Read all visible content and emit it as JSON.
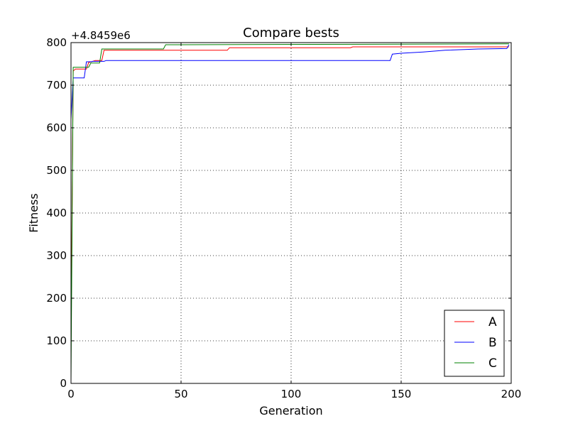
{
  "chart_data": {
    "type": "line",
    "title": "Compare bests",
    "xlabel": "Generation",
    "ylabel": "Fitness",
    "offset_label": "+4.8459e6",
    "xlim": [
      0,
      200
    ],
    "ylim": [
      0,
      800
    ],
    "xticks": [
      0,
      50,
      100,
      150,
      200
    ],
    "yticks": [
      0,
      100,
      200,
      300,
      400,
      500,
      600,
      700,
      800
    ],
    "grid": true,
    "legend_position": "lower-right",
    "series": [
      {
        "name": "A",
        "color": "#ff0000",
        "points": [
          [
            0,
            100
          ],
          [
            1,
            733
          ],
          [
            2,
            738
          ],
          [
            7,
            738
          ],
          [
            8,
            753
          ],
          [
            11,
            758
          ],
          [
            14,
            758
          ],
          [
            15,
            782
          ],
          [
            71,
            782
          ],
          [
            72,
            788
          ],
          [
            127,
            788
          ],
          [
            128,
            790
          ],
          [
            199,
            790
          ]
        ]
      },
      {
        "name": "B",
        "color": "#0000ff",
        "points": [
          [
            0,
            620
          ],
          [
            1,
            717
          ],
          [
            6,
            717
          ],
          [
            7,
            755
          ],
          [
            9,
            755
          ],
          [
            10,
            756
          ],
          [
            15,
            756
          ],
          [
            16,
            758
          ],
          [
            145,
            758
          ],
          [
            146,
            773
          ],
          [
            150,
            775
          ],
          [
            160,
            778
          ],
          [
            170,
            782
          ],
          [
            185,
            785
          ],
          [
            198,
            786
          ],
          [
            199,
            795
          ]
        ]
      },
      {
        "name": "C",
        "color": "#008000",
        "points": [
          [
            0,
            5
          ],
          [
            1,
            742
          ],
          [
            8,
            742
          ],
          [
            9,
            752
          ],
          [
            13,
            752
          ],
          [
            14,
            785
          ],
          [
            42,
            785
          ],
          [
            43,
            795
          ],
          [
            199,
            797
          ]
        ]
      }
    ]
  }
}
